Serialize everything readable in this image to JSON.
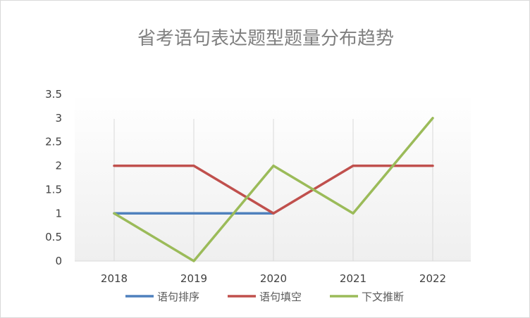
{
  "chart_data": {
    "type": "line",
    "title": "省考语句表达题型题量分布趋势",
    "xlabel": "",
    "ylabel": "",
    "categories": [
      "2018",
      "2019",
      "2020",
      "2021",
      "2022"
    ],
    "ylim": [
      0,
      3.5
    ],
    "yticks": [
      "0",
      "0.5",
      "1",
      "1.5",
      "2",
      "2.5",
      "3",
      "3.5"
    ],
    "grid": "vertical",
    "legend_position": "bottom",
    "series": [
      {
        "name": "语句排序",
        "values": [
          1,
          1,
          1,
          null,
          null
        ],
        "color": "#4f81bd"
      },
      {
        "name": "语句填空",
        "values": [
          2,
          2,
          1,
          2,
          2
        ],
        "color": "#c0504d"
      },
      {
        "name": "下文推断",
        "values": [
          1,
          0,
          2,
          1,
          3
        ],
        "color": "#9bbb59"
      }
    ]
  }
}
